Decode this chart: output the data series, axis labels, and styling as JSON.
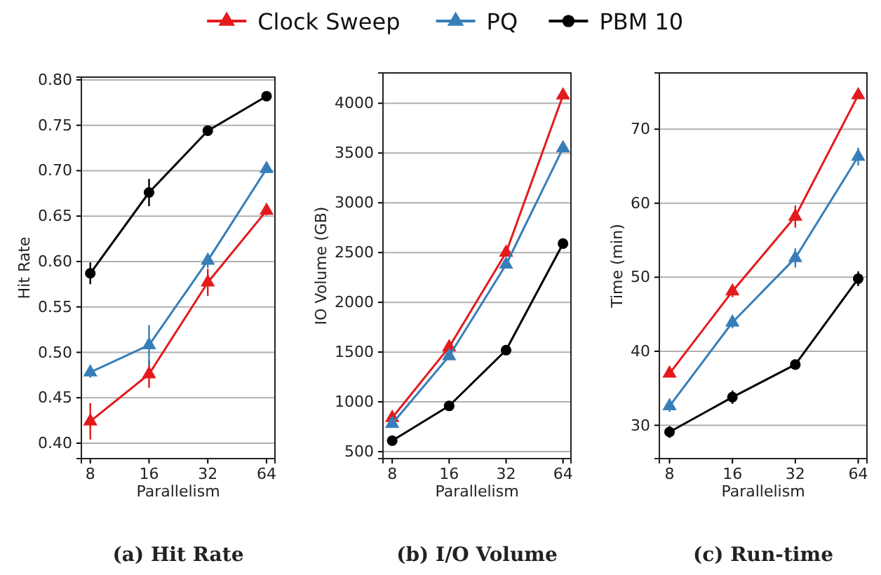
{
  "chart_data": [
    {
      "type": "line",
      "title": "(a) Hit Rate",
      "xlabel": "Parallelism",
      "ylabel": "Hit Rate",
      "x": [
        8,
        16,
        32,
        64
      ],
      "log": "x",
      "xlim": [
        7.2,
        70.7
      ],
      "xticks": [
        8,
        16,
        32,
        64
      ],
      "ylim": [
        0.383,
        0.803
      ],
      "yticks": [
        {
          "value": 0.4,
          "label": "0.40"
        },
        {
          "value": 0.45,
          "label": "0.45"
        },
        {
          "value": 0.5,
          "label": "0.50"
        },
        {
          "value": 0.55,
          "label": "0.55"
        },
        {
          "value": 0.6,
          "label": "0.60"
        },
        {
          "value": 0.65,
          "label": "0.65"
        },
        {
          "value": 0.7,
          "label": "0.70"
        },
        {
          "value": 0.75,
          "label": "0.75"
        },
        {
          "value": 0.8,
          "label": "0.80"
        }
      ],
      "grid": "y",
      "legend": "top",
      "series": [
        {
          "name": "Clock Sweep",
          "color": "#e41a1c",
          "marker": "triangle",
          "values": [
            0.424,
            0.476,
            0.577,
            0.656
          ],
          "errors": [
            0.02,
            0.015,
            0.015,
            0.005
          ]
        },
        {
          "name": "PQ",
          "color": "#377eb8",
          "marker": "triangle",
          "values": [
            0.478,
            0.508,
            0.601,
            0.702
          ],
          "errors": [
            0.006,
            0.022,
            0.008,
            0.003
          ]
        },
        {
          "name": "PBM 10",
          "color": "#000000",
          "marker": "circle",
          "values": [
            0.587,
            0.676,
            0.744,
            0.782
          ],
          "errors": [
            0.012,
            0.015,
            0.004,
            0.003
          ]
        }
      ]
    },
    {
      "type": "line",
      "title": "(b) I/O Volume",
      "xlabel": "Parallelism",
      "ylabel": "IO Volume (GB)",
      "x": [
        8,
        16,
        32,
        64
      ],
      "log": "x",
      "xlim": [
        7.15,
        70.5
      ],
      "xticks": [
        8,
        16,
        32,
        64
      ],
      "ylim": [
        430,
        4305
      ],
      "yticks": [
        500,
        1000,
        1500,
        2000,
        2500,
        3000,
        3500,
        4000
      ],
      "grid": "y",
      "series": [
        {
          "color": "#e41a1c",
          "marker": "triangle",
          "values": [
            840,
            1550,
            2500,
            4080
          ]
        },
        {
          "color": "#377eb8",
          "marker": "triangle",
          "values": [
            780,
            1460,
            2380,
            3550
          ]
        },
        {
          "color": "#000000",
          "marker": "circle",
          "values": [
            610,
            960,
            1520,
            2590
          ]
        }
      ]
    },
    {
      "type": "line",
      "title": "(c) Run-time",
      "xlabel": "Parallelism",
      "ylabel": "Time (min)",
      "x": [
        8,
        16,
        32,
        64
      ],
      "log": "x",
      "xlim": [
        7.15,
        70.5
      ],
      "xticks": [
        8,
        16,
        32,
        64
      ],
      "ylim": [
        25.5,
        77.6
      ],
      "yticks": [
        30,
        40,
        50,
        60,
        70
      ],
      "grid": "y",
      "series": [
        {
          "color": "#e41a1c",
          "marker": "triangle",
          "values": [
            37.0,
            48.1,
            58.2,
            74.6
          ],
          "errors": [
            0.4,
            0.8,
            1.5,
            0.5
          ]
        },
        {
          "color": "#377eb8",
          "marker": "triangle",
          "values": [
            32.6,
            43.9,
            52.6,
            66.3
          ],
          "errors": [
            0.8,
            0.8,
            1.3,
            1.2
          ]
        },
        {
          "color": "#000000",
          "marker": "circle",
          "values": [
            29.1,
            33.8,
            38.2,
            49.8
          ],
          "errors": [
            0.8,
            0.9,
            0.4,
            1.0
          ]
        }
      ]
    }
  ]
}
